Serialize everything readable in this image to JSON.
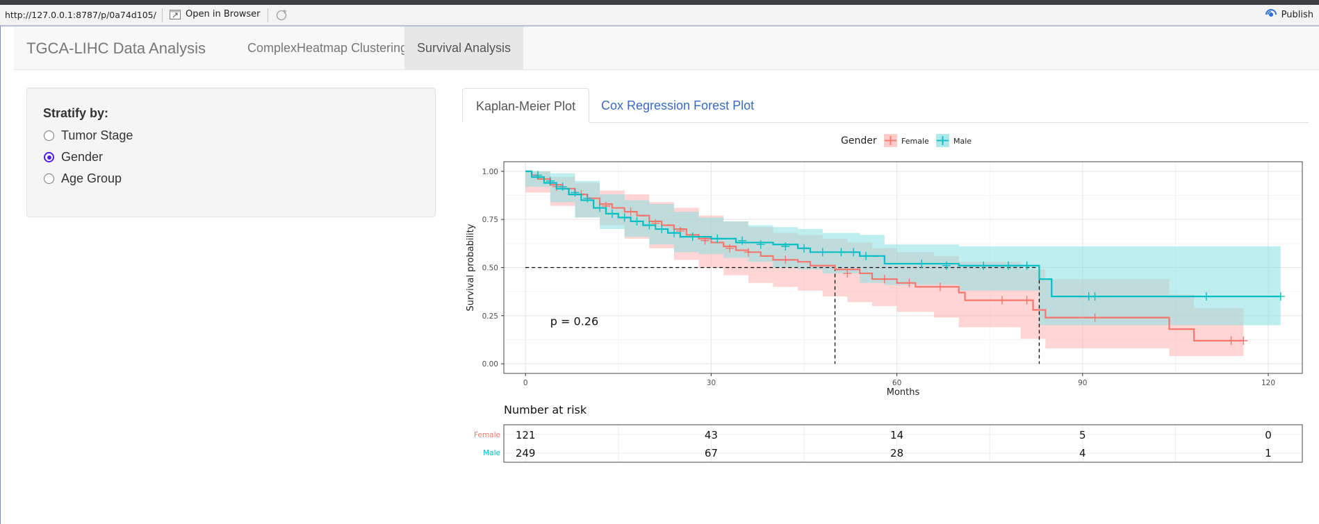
{
  "viewer": {
    "url": "http://127.0.0.1:8787/p/0a74d105/",
    "open_browser_label": "Open in Browser",
    "publish_label": "Publish"
  },
  "navbar": {
    "brand": "TGCA-LIHC Data Analysis",
    "tabs": [
      {
        "label": "ComplexHeatmap Clustering",
        "active": false
      },
      {
        "label": "Survival Analysis",
        "active": true
      }
    ]
  },
  "sidebar": {
    "stratify_label": "Stratify by:",
    "options": [
      {
        "label": "Tumor Stage",
        "checked": false
      },
      {
        "label": "Gender",
        "checked": true
      },
      {
        "label": "Age Group",
        "checked": false
      }
    ]
  },
  "main": {
    "tabs": [
      {
        "label": "Kaplan-Meier Plot",
        "active": true
      },
      {
        "label": "Cox Regression Forest Plot",
        "active": false
      }
    ]
  },
  "colors": {
    "female": "#f8766d",
    "male": "#00bfc4",
    "female_ci": "#ffb3b3",
    "male_ci": "#8ae0e0",
    "radio_accent": "#4f1dea",
    "link": "#3a6bbf"
  },
  "chart_data": {
    "type": "line",
    "subtype": "kaplan-meier",
    "xlabel": "Months",
    "ylabel": "Survival probability",
    "xlim": [
      0,
      122
    ],
    "ylim": [
      0,
      1
    ],
    "x_ticks": [
      0,
      30,
      60,
      90,
      120
    ],
    "y_ticks": [
      "0.00",
      "0.25",
      "0.50",
      "0.75",
      "1.00"
    ],
    "legend_title": "Gender",
    "legend_position": "top",
    "pvalue_text": "p = 0.26",
    "grid": true,
    "median_line_y": 0.5,
    "median_survival": {
      "Female": 50,
      "Male": 83
    },
    "series": [
      {
        "name": "Female",
        "color": "#f8766d",
        "steps": [
          [
            0,
            1.0
          ],
          [
            1,
            0.98
          ],
          [
            2,
            0.96
          ],
          [
            4,
            0.93
          ],
          [
            6,
            0.91
          ],
          [
            8,
            0.88
          ],
          [
            10,
            0.86
          ],
          [
            12,
            0.83
          ],
          [
            14,
            0.81
          ],
          [
            16,
            0.79
          ],
          [
            18,
            0.77
          ],
          [
            20,
            0.74
          ],
          [
            22,
            0.72
          ],
          [
            24,
            0.7
          ],
          [
            26,
            0.67
          ],
          [
            28,
            0.65
          ],
          [
            30,
            0.63
          ],
          [
            32,
            0.61
          ],
          [
            34,
            0.59
          ],
          [
            36,
            0.58
          ],
          [
            38,
            0.56
          ],
          [
            40,
            0.54
          ],
          [
            44,
            0.53
          ],
          [
            46,
            0.51
          ],
          [
            50,
            0.49
          ],
          [
            54,
            0.47
          ],
          [
            56,
            0.44
          ],
          [
            60,
            0.42
          ],
          [
            63,
            0.4
          ],
          [
            70,
            0.37
          ],
          [
            71,
            0.33
          ],
          [
            82,
            0.28
          ],
          [
            84,
            0.24
          ],
          [
            104,
            0.18
          ],
          [
            108,
            0.12
          ],
          [
            116,
            0.12
          ]
        ],
        "ci_upper": [
          [
            0,
            1.0
          ],
          [
            4,
            0.97
          ],
          [
            8,
            0.94
          ],
          [
            12,
            0.9
          ],
          [
            16,
            0.88
          ],
          [
            20,
            0.84
          ],
          [
            24,
            0.81
          ],
          [
            28,
            0.77
          ],
          [
            32,
            0.74
          ],
          [
            36,
            0.71
          ],
          [
            40,
            0.68
          ],
          [
            44,
            0.67
          ],
          [
            48,
            0.65
          ],
          [
            52,
            0.63
          ],
          [
            56,
            0.6
          ],
          [
            60,
            0.58
          ],
          [
            66,
            0.56
          ],
          [
            70,
            0.53
          ],
          [
            80,
            0.49
          ],
          [
            84,
            0.44
          ],
          [
            104,
            0.36
          ],
          [
            108,
            0.29
          ],
          [
            116,
            0.29
          ]
        ],
        "ci_lower": [
          [
            0,
            1.0
          ],
          [
            4,
            0.89
          ],
          [
            8,
            0.82
          ],
          [
            12,
            0.76
          ],
          [
            16,
            0.72
          ],
          [
            20,
            0.65
          ],
          [
            24,
            0.6
          ],
          [
            28,
            0.54
          ],
          [
            32,
            0.5
          ],
          [
            36,
            0.46
          ],
          [
            40,
            0.42
          ],
          [
            44,
            0.4
          ],
          [
            48,
            0.38
          ],
          [
            52,
            0.35
          ],
          [
            56,
            0.32
          ],
          [
            60,
            0.3
          ],
          [
            66,
            0.27
          ],
          [
            70,
            0.24
          ],
          [
            80,
            0.19
          ],
          [
            84,
            0.13
          ],
          [
            104,
            0.08
          ],
          [
            108,
            0.04
          ],
          [
            116,
            0.04
          ]
        ],
        "censor": [
          [
            5,
            0.92
          ],
          [
            9,
            0.88
          ],
          [
            13,
            0.82
          ],
          [
            17,
            0.79
          ],
          [
            21,
            0.73
          ],
          [
            25,
            0.69
          ],
          [
            29,
            0.64
          ],
          [
            33,
            0.6
          ],
          [
            36,
            0.58
          ],
          [
            42,
            0.54
          ],
          [
            52,
            0.47
          ],
          [
            58,
            0.44
          ],
          [
            62,
            0.42
          ],
          [
            67,
            0.4
          ],
          [
            77,
            0.33
          ],
          [
            81,
            0.33
          ],
          [
            92,
            0.24
          ],
          [
            114,
            0.12
          ],
          [
            116,
            0.12
          ]
        ]
      },
      {
        "name": "Male",
        "color": "#00bfc4",
        "steps": [
          [
            0,
            1.0
          ],
          [
            1,
            0.97
          ],
          [
            3,
            0.94
          ],
          [
            5,
            0.91
          ],
          [
            7,
            0.88
          ],
          [
            9,
            0.85
          ],
          [
            11,
            0.81
          ],
          [
            13,
            0.78
          ],
          [
            15,
            0.76
          ],
          [
            17,
            0.74
          ],
          [
            19,
            0.72
          ],
          [
            21,
            0.7
          ],
          [
            23,
            0.68
          ],
          [
            25,
            0.66
          ],
          [
            30,
            0.65
          ],
          [
            34,
            0.63
          ],
          [
            40,
            0.62
          ],
          [
            44,
            0.6
          ],
          [
            46,
            0.58
          ],
          [
            54,
            0.56
          ],
          [
            58,
            0.52
          ],
          [
            70,
            0.51
          ],
          [
            83,
            0.51
          ],
          [
            83,
            0.44
          ],
          [
            85,
            0.35
          ],
          [
            122,
            0.35
          ]
        ],
        "ci_upper": [
          [
            0,
            1.0
          ],
          [
            4,
            0.99
          ],
          [
            8,
            0.95
          ],
          [
            12,
            0.88
          ],
          [
            16,
            0.85
          ],
          [
            20,
            0.83
          ],
          [
            24,
            0.79
          ],
          [
            28,
            0.76
          ],
          [
            32,
            0.74
          ],
          [
            36,
            0.72
          ],
          [
            40,
            0.71
          ],
          [
            44,
            0.7
          ],
          [
            48,
            0.68
          ],
          [
            54,
            0.67
          ],
          [
            58,
            0.62
          ],
          [
            70,
            0.61
          ],
          [
            83,
            0.61
          ],
          [
            85,
            0.61
          ],
          [
            122,
            0.61
          ]
        ],
        "ci_lower": [
          [
            0,
            1.0
          ],
          [
            4,
            0.92
          ],
          [
            8,
            0.84
          ],
          [
            12,
            0.76
          ],
          [
            16,
            0.7
          ],
          [
            20,
            0.66
          ],
          [
            24,
            0.62
          ],
          [
            28,
            0.58
          ],
          [
            32,
            0.57
          ],
          [
            36,
            0.55
          ],
          [
            40,
            0.53
          ],
          [
            44,
            0.5
          ],
          [
            48,
            0.49
          ],
          [
            54,
            0.47
          ],
          [
            58,
            0.42
          ],
          [
            70,
            0.41
          ],
          [
            83,
            0.38
          ],
          [
            85,
            0.2
          ],
          [
            122,
            0.2
          ]
        ],
        "censor": [
          [
            2,
            0.98
          ],
          [
            4,
            0.95
          ],
          [
            6,
            0.92
          ],
          [
            8,
            0.89
          ],
          [
            10,
            0.86
          ],
          [
            12,
            0.81
          ],
          [
            14,
            0.78
          ],
          [
            16,
            0.76
          ],
          [
            18,
            0.74
          ],
          [
            20,
            0.72
          ],
          [
            22,
            0.7
          ],
          [
            24,
            0.68
          ],
          [
            27,
            0.66
          ],
          [
            31,
            0.65
          ],
          [
            35,
            0.64
          ],
          [
            38,
            0.62
          ],
          [
            42,
            0.61
          ],
          [
            45,
            0.6
          ],
          [
            48,
            0.58
          ],
          [
            51,
            0.58
          ],
          [
            53,
            0.58
          ],
          [
            55,
            0.56
          ],
          [
            64,
            0.52
          ],
          [
            68,
            0.51
          ],
          [
            74,
            0.51
          ],
          [
            78,
            0.51
          ],
          [
            81,
            0.51
          ],
          [
            91,
            0.35
          ],
          [
            92,
            0.35
          ],
          [
            110,
            0.35
          ],
          [
            122,
            0.35
          ]
        ]
      }
    ],
    "risk_table": {
      "title": "Number at risk",
      "times": [
        0,
        30,
        60,
        90,
        120
      ],
      "rows": [
        {
          "label": "Female",
          "color": "#f8766d",
          "values": [
            "121",
            "43",
            "14",
            "5",
            "0"
          ]
        },
        {
          "label": "Male",
          "color": "#00bfc4",
          "values": [
            "249",
            "67",
            "28",
            "4",
            "1"
          ]
        }
      ]
    }
  }
}
